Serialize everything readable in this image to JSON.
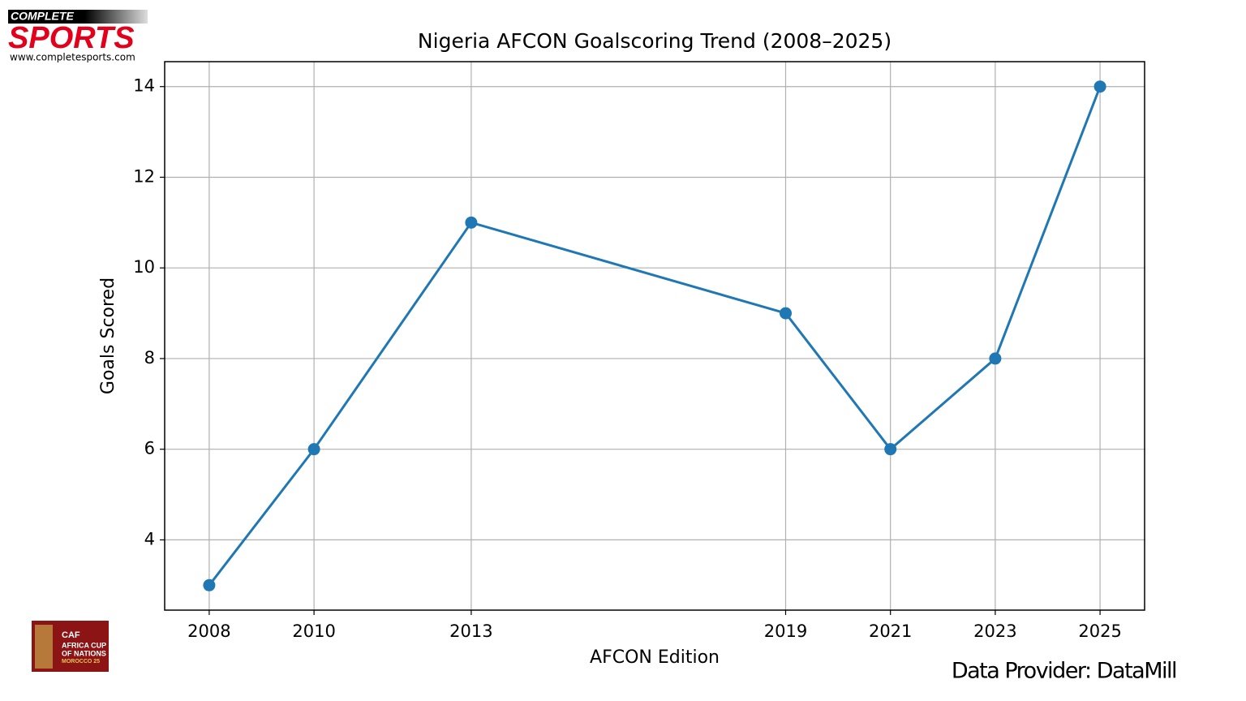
{
  "chart_data": {
    "type": "line",
    "title": "Nigeria AFCON Goalscoring Trend (2008–2025)",
    "x_label": "AFCON Edition",
    "y_label": "Goals Scored",
    "x": [
      2008,
      2010,
      2013,
      2019,
      2021,
      2023,
      2025
    ],
    "series": [
      {
        "color": "#1f77b4",
        "values": [
          3,
          6,
          11,
          9,
          6,
          8,
          14
        ]
      }
    ],
    "xlim": [
      2007.15,
      2025.85
    ],
    "xticks": [
      2008,
      2010,
      2013,
      2019,
      2021,
      2023,
      2025
    ],
    "ylim": [
      2.45,
      14.55
    ],
    "yticks": [
      4,
      6,
      8,
      10,
      12,
      14
    ],
    "grid": true,
    "markers": true
  },
  "logo": {
    "top": "COMPLETE",
    "name": "SPORTS",
    "url": "www.completesports.com"
  },
  "badge": {
    "org": "CAF",
    "line1": "AFRICA CUP",
    "line2": "OF NATIONS",
    "line3": "MOROCCO 25"
  },
  "footer": "Data Provider:  DataMill"
}
